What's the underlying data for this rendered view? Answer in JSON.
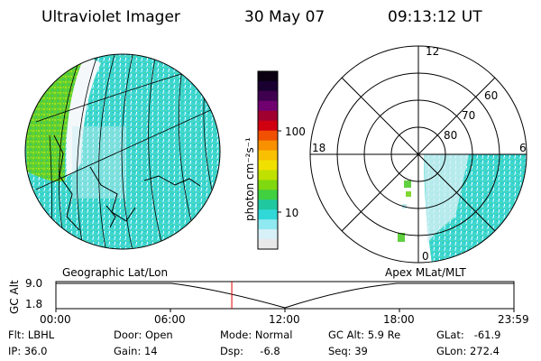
{
  "header": {
    "instrument": "Ultraviolet Imager",
    "date": "30 May 07",
    "time": "09:13:12 UT"
  },
  "colorbar": {
    "label": "photon cm⁻²s⁻¹",
    "ticks": [
      "100",
      "10"
    ],
    "colors": [
      "#0a0012",
      "#1a0030",
      "#400050",
      "#700070",
      "#a00030",
      "#d00010",
      "#f05000",
      "#f89000",
      "#f8c000",
      "#f0e000",
      "#c0e000",
      "#80d810",
      "#40d040",
      "#20c8a0",
      "#30d8d8",
      "#90e8f0",
      "#d8f0f8",
      "#e8e8e8"
    ]
  },
  "geo_panel": {
    "label": "Geographic Lat/Lon"
  },
  "polar_panel": {
    "label": "Apex MLat/MLT",
    "mlt_labels": [
      "12",
      "18",
      "6",
      "0"
    ],
    "lat_labels": [
      "60",
      "70",
      "80"
    ]
  },
  "altitude_plot": {
    "ylabel": "GC Alt",
    "yticks": [
      "9.0",
      "1.8"
    ],
    "xticks": [
      "00:00",
      "06:00",
      "12:00",
      "18:00",
      "23:59"
    ],
    "current_time_fraction": 0.384,
    "marker_color": "#e00000"
  },
  "info": {
    "flt": "Flt: LBHL",
    "ip": "IP: 36.0",
    "door": "Door: Open",
    "gain": "Gain: 14",
    "mode": "Mode: Normal",
    "dsp": "Dsp:     -6.8",
    "gcalt": "GC Alt: 5.9 Re",
    "seq": "Seq: 39",
    "glat": "GLat:   -61.9",
    "glon": "GLon: 272.4"
  }
}
